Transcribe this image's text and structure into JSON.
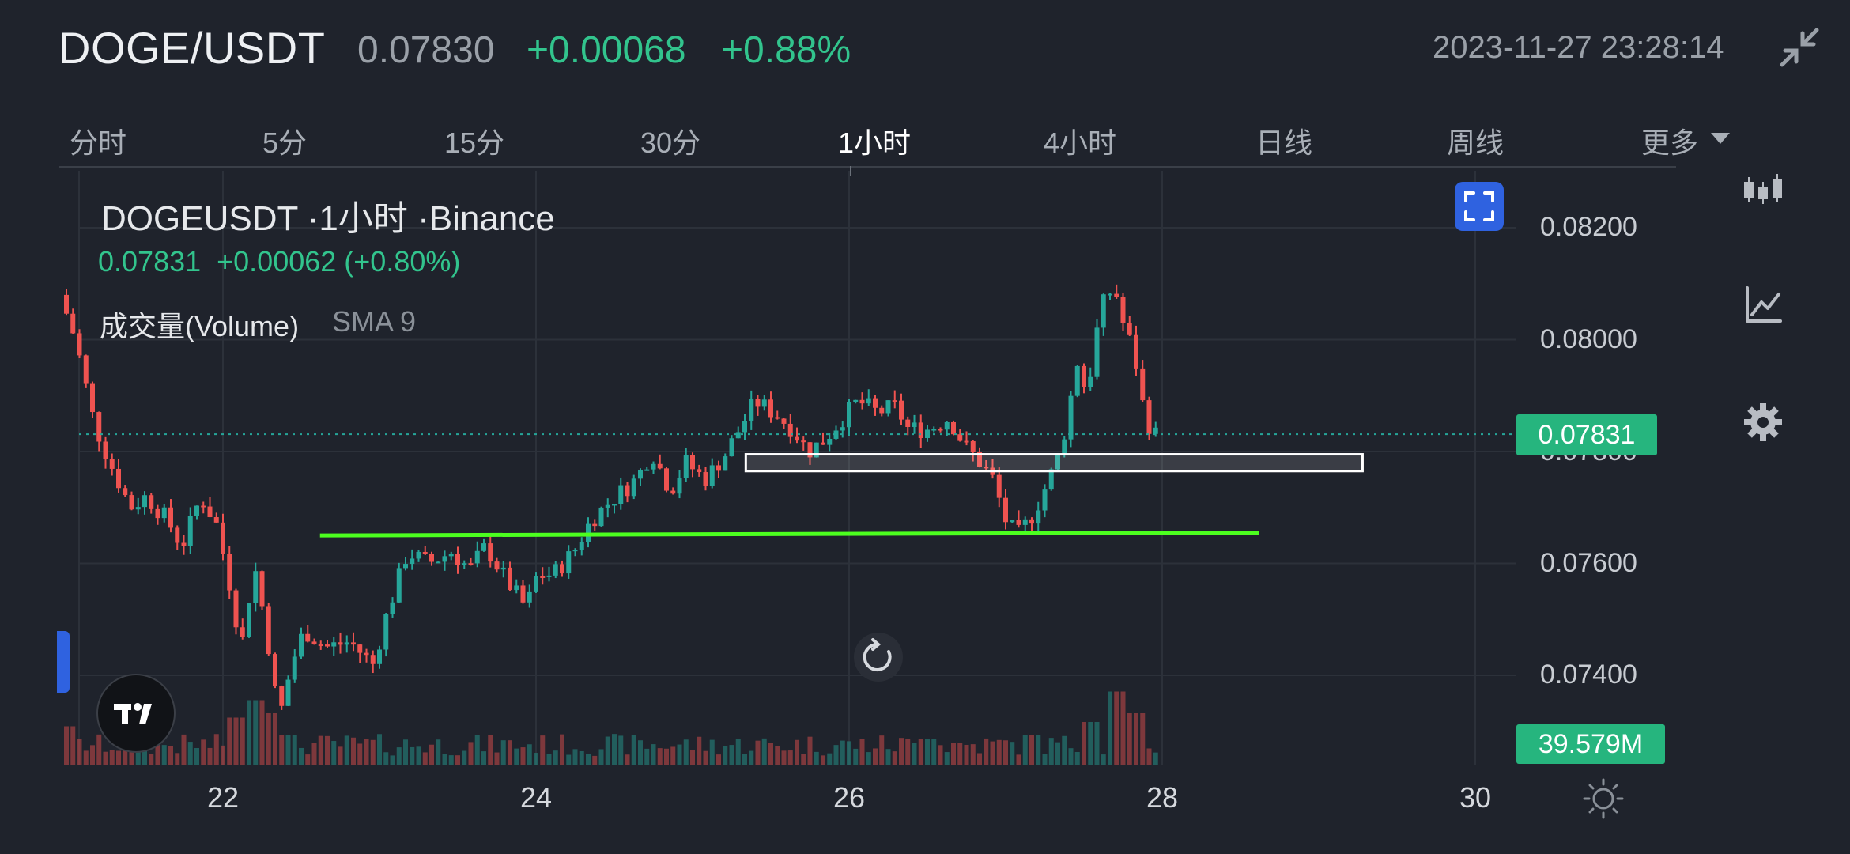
{
  "header": {
    "pair": "DOGE/USDT",
    "price": "0.07830",
    "change": "+0.00068",
    "change_pct": "+0.88%",
    "datetime": "2023-11-27 23:28:14",
    "collapse_icon": "collapse-arrows-icon"
  },
  "tabs": [
    {
      "label": "分时",
      "active": false
    },
    {
      "label": "5分",
      "active": false
    },
    {
      "label": "15分",
      "active": false
    },
    {
      "label": "30分",
      "active": false
    },
    {
      "label": "1小时",
      "active": true
    },
    {
      "label": "4小时",
      "active": false
    },
    {
      "label": "日线",
      "active": false
    },
    {
      "label": "周线",
      "active": false
    },
    {
      "label": "更多",
      "active": false
    }
  ],
  "chart_header": {
    "title": "DOGEUSDT ·1小时 ·Binance",
    "quote": "0.07831  +0.00062 (+0.80%)",
    "volume_label": "成交量(Volume)",
    "volume_sma": "SMA 9"
  },
  "price_tag": "0.07831",
  "volume_tag": "39.579M",
  "sidebar_icons": [
    "candles-icon",
    "line-chart-icon",
    "gear-icon"
  ],
  "colors": {
    "up": "#26a69a",
    "down": "#ef5350",
    "accent": "#2f62e0",
    "tag": "#26b57e",
    "trendline": "#4cff1f"
  },
  "chart_data": {
    "type": "candlestick",
    "symbol": "DOGEUSDT",
    "interval": "1小时",
    "exchange": "Binance",
    "y_ticks": [
      "0.08200",
      "0.08000",
      "0.07800",
      "0.07600",
      "0.07400"
    ],
    "y_tick_values": [
      0.082,
      0.08,
      0.078,
      0.076,
      0.074
    ],
    "ylim": [
      0.0725,
      0.0838
    ],
    "x_ticks": [
      "22",
      "24",
      "26",
      "28",
      "30"
    ],
    "x_tick_days": [
      22,
      24,
      26,
      28,
      30
    ],
    "xlim": [
      21.0,
      30.2
    ],
    "last_price": 0.07831,
    "path": [
      [
        21.0,
        0.0808
      ],
      [
        21.1,
        0.08
      ],
      [
        21.22,
        0.0785
      ],
      [
        21.32,
        0.0778
      ],
      [
        21.45,
        0.077
      ],
      [
        21.55,
        0.0772
      ],
      [
        21.68,
        0.0768
      ],
      [
        21.78,
        0.0763
      ],
      [
        21.9,
        0.0772
      ],
      [
        22.0,
        0.0767
      ],
      [
        22.08,
        0.0757
      ],
      [
        22.16,
        0.0745
      ],
      [
        22.24,
        0.076
      ],
      [
        22.32,
        0.0748
      ],
      [
        22.4,
        0.0732
      ],
      [
        22.48,
        0.0742
      ],
      [
        22.56,
        0.0748
      ],
      [
        22.7,
        0.0745
      ],
      [
        22.85,
        0.0746
      ],
      [
        23.0,
        0.0742
      ],
      [
        23.1,
        0.0752
      ],
      [
        23.22,
        0.0762
      ],
      [
        23.35,
        0.076
      ],
      [
        23.5,
        0.0762
      ],
      [
        23.62,
        0.0759
      ],
      [
        23.72,
        0.0763
      ],
      [
        23.85,
        0.0757
      ],
      [
        23.98,
        0.0752
      ],
      [
        24.05,
        0.0758
      ],
      [
        24.15,
        0.0758
      ],
      [
        24.28,
        0.0762
      ],
      [
        24.4,
        0.0768
      ],
      [
        24.55,
        0.0772
      ],
      [
        24.68,
        0.0775
      ],
      [
        24.78,
        0.078
      ],
      [
        24.9,
        0.0773
      ],
      [
        25.0,
        0.0778
      ],
      [
        25.12,
        0.0775
      ],
      [
        25.24,
        0.0779
      ],
      [
        25.34,
        0.0784
      ],
      [
        25.44,
        0.0789
      ],
      [
        25.56,
        0.0787
      ],
      [
        25.68,
        0.0784
      ],
      [
        25.78,
        0.078
      ],
      [
        25.88,
        0.0782
      ],
      [
        26.0,
        0.0786
      ],
      [
        26.1,
        0.0789
      ],
      [
        26.22,
        0.0787
      ],
      [
        26.34,
        0.0788
      ],
      [
        26.42,
        0.0784
      ],
      [
        26.55,
        0.0784
      ],
      [
        26.68,
        0.0786
      ],
      [
        26.78,
        0.0781
      ],
      [
        26.88,
        0.0778
      ],
      [
        26.96,
        0.0775
      ],
      [
        27.05,
        0.0767
      ],
      [
        27.12,
        0.0765
      ],
      [
        27.22,
        0.0769
      ],
      [
        27.32,
        0.0775
      ],
      [
        27.4,
        0.0781
      ],
      [
        27.5,
        0.0796
      ],
      [
        27.56,
        0.079
      ],
      [
        27.62,
        0.0801
      ],
      [
        27.68,
        0.0808
      ],
      [
        27.74,
        0.0809
      ],
      [
        27.8,
        0.0802
      ],
      [
        27.86,
        0.0798
      ],
      [
        27.92,
        0.0788
      ],
      [
        27.98,
        0.0783
      ]
    ],
    "volume_spikes": [
      [
        21.0,
        0.45
      ],
      [
        22.1,
        0.55
      ],
      [
        22.2,
        0.75
      ],
      [
        22.3,
        0.6
      ],
      [
        22.4,
        0.35
      ],
      [
        26.5,
        0.3
      ],
      [
        27.15,
        0.35
      ],
      [
        27.55,
        0.5
      ],
      [
        27.7,
        0.85
      ],
      [
        27.85,
        0.6
      ]
    ],
    "overlays": [
      {
        "type": "trendline",
        "from": [
          22.62,
          0.0765
        ],
        "to": [
          28.62,
          0.07655
        ],
        "color": "#4cff1f"
      },
      {
        "type": "rectangle",
        "from": [
          25.34,
          0.07795
        ],
        "to": [
          29.28,
          0.07765
        ],
        "color": "#ffffff"
      },
      {
        "type": "hline-dotted",
        "value": 0.07831,
        "color": "#26a69a"
      }
    ]
  }
}
